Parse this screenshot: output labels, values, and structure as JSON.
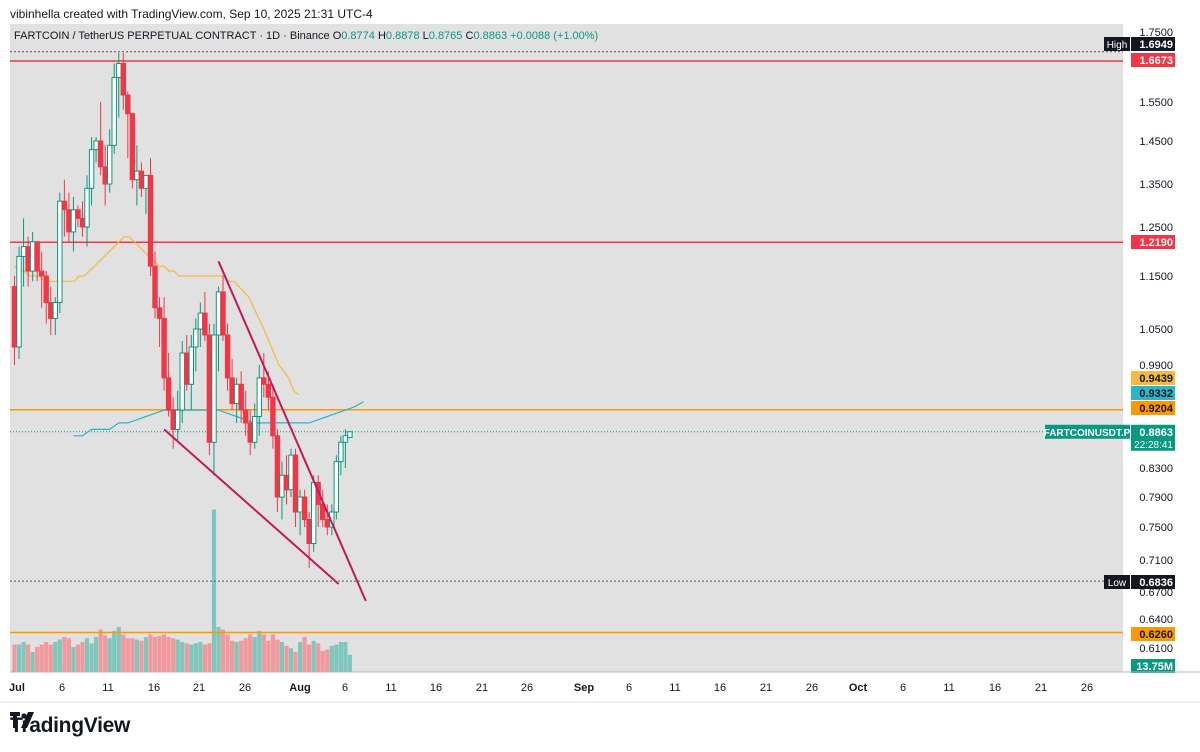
{
  "credit": "vibinhella created with TradingView.com, Sep 10, 2025 21:31 UTC-4",
  "legend": {
    "title": "FARTCOIN / TetherUS PERPETUAL CONTRACT · 1D · Binance",
    "o_label": "O",
    "o": "0.8774",
    "h_label": "H",
    "h": "0.8878",
    "l_label": "L",
    "l": "0.8765",
    "c_label": "C",
    "c": "0.8863",
    "change": "+0.0088 (+1.00%)"
  },
  "brand": "TradingView",
  "colors": {
    "up": "#089981",
    "down": "#f23645",
    "vol_up": "#7fc6bd",
    "vol_down": "#f19a9e",
    "plot_bg": "#e1e1e1",
    "resistance": "#f23645",
    "support_line": "#ff9800",
    "ma_slow": "#29b6c8",
    "ma_fast": "#f5b93b",
    "trendline": "#c2185b"
  },
  "chart_data": {
    "type": "candlestick",
    "symbol": "FARTCOIN / TetherUS PERPETUAL CONTRACT",
    "timeframe": "1D",
    "exchange": "Binance",
    "y_ticks": [
      "1.7500",
      "1.5500",
      "1.4500",
      "1.3500",
      "1.2500",
      "1.1500",
      "1.0500",
      "0.9900",
      "0.8300",
      "0.7900",
      "0.7500",
      "0.7100",
      "0.6700",
      "0.6400",
      "0.6100"
    ],
    "x_ticks": [
      "Jul",
      "6",
      "11",
      "16",
      "21",
      "26",
      "Aug",
      "6",
      "11",
      "16",
      "21",
      "26",
      "Sep",
      "6",
      "11",
      "16",
      "21",
      "26",
      "Oct",
      "6",
      "11",
      "16",
      "21",
      "26"
    ],
    "price_labels": [
      {
        "text": "1.6949",
        "kind": "high",
        "tag": "High"
      },
      {
        "text": "1.6673",
        "kind": "resistance"
      },
      {
        "text": "1.2190",
        "kind": "resistance"
      },
      {
        "text": "0.9439",
        "kind": "ma_fast"
      },
      {
        "text": "0.9332",
        "kind": "ma_slow"
      },
      {
        "text": "0.9204",
        "kind": "support"
      },
      {
        "text": "0.6836",
        "kind": "low",
        "tag": "Low"
      },
      {
        "text": "0.6260",
        "kind": "support"
      }
    ],
    "last_price": {
      "symbol": "FARTCOINUSDT.P",
      "price": "0.8863",
      "countdown": "22:28:41"
    },
    "volume_label": "13.75M",
    "horizontal_levels": [
      1.6949,
      1.6673,
      1.219,
      0.9204,
      0.6836,
      0.626
    ],
    "candles": [
      [
        1.13,
        1.15,
        0.99,
        1.02
      ],
      [
        1.02,
        1.21,
        1.0,
        1.19
      ],
      [
        1.19,
        1.27,
        1.13,
        1.21
      ],
      [
        1.21,
        1.23,
        1.13,
        1.16
      ],
      [
        1.16,
        1.24,
        1.14,
        1.22
      ],
      [
        1.22,
        1.22,
        1.14,
        1.16
      ],
      [
        1.16,
        1.2,
        1.09,
        1.15
      ],
      [
        1.15,
        1.16,
        1.06,
        1.1
      ],
      [
        1.1,
        1.13,
        1.04,
        1.07
      ],
      [
        1.07,
        1.11,
        1.04,
        1.1
      ],
      [
        1.1,
        1.33,
        1.08,
        1.31
      ],
      [
        1.31,
        1.36,
        1.23,
        1.29
      ],
      [
        1.29,
        1.33,
        1.22,
        1.24
      ],
      [
        1.24,
        1.32,
        1.2,
        1.29
      ],
      [
        1.29,
        1.3,
        1.25,
        1.27
      ],
      [
        1.27,
        1.31,
        1.23,
        1.25
      ],
      [
        1.25,
        1.37,
        1.21,
        1.34
      ],
      [
        1.34,
        1.46,
        1.3,
        1.43
      ],
      [
        1.43,
        1.46,
        1.4,
        1.45
      ],
      [
        1.45,
        1.55,
        1.37,
        1.39
      ],
      [
        1.39,
        1.44,
        1.3,
        1.35
      ],
      [
        1.35,
        1.48,
        1.33,
        1.44
      ],
      [
        1.44,
        1.66,
        1.42,
        1.62
      ],
      [
        1.62,
        1.69,
        1.51,
        1.66
      ],
      [
        1.66,
        1.69,
        1.53,
        1.57
      ],
      [
        1.57,
        1.58,
        1.41,
        1.52
      ],
      [
        1.52,
        1.52,
        1.34,
        1.36
      ],
      [
        1.36,
        1.44,
        1.3,
        1.38
      ],
      [
        1.38,
        1.4,
        1.32,
        1.34
      ],
      [
        1.34,
        1.37,
        1.28,
        1.37
      ],
      [
        1.37,
        1.41,
        1.15,
        1.17
      ],
      [
        1.17,
        1.2,
        1.07,
        1.09
      ],
      [
        1.09,
        1.11,
        1.02,
        1.07
      ],
      [
        1.07,
        1.11,
        0.95,
        0.97
      ],
      [
        0.97,
        1.01,
        0.91,
        0.92
      ],
      [
        0.92,
        0.94,
        0.86,
        0.89
      ],
      [
        0.89,
        0.95,
        0.87,
        0.92
      ],
      [
        0.92,
        1.03,
        0.9,
        1.01
      ],
      [
        1.01,
        1.04,
        0.95,
        0.96
      ],
      [
        0.96,
        1.04,
        0.92,
        1.02
      ],
      [
        1.02,
        1.07,
        0.98,
        1.05
      ],
      [
        1.05,
        1.1,
        1.02,
        1.08
      ],
      [
        1.08,
        1.12,
        1.03,
        1.04
      ],
      [
        1.04,
        1.06,
        0.85,
        0.87
      ],
      [
        0.87,
        1.06,
        0.82,
        1.04
      ],
      [
        1.04,
        1.13,
        0.98,
        1.12
      ],
      [
        1.12,
        1.15,
        1.03,
        1.04
      ],
      [
        1.04,
        1.06,
        0.95,
        0.97
      ],
      [
        0.97,
        1.0,
        0.92,
        0.93
      ],
      [
        0.93,
        0.97,
        0.9,
        0.96
      ],
      [
        0.96,
        0.98,
        0.9,
        0.92
      ],
      [
        0.92,
        0.95,
        0.88,
        0.9
      ],
      [
        0.9,
        0.92,
        0.85,
        0.87
      ],
      [
        0.87,
        0.93,
        0.86,
        0.91
      ],
      [
        0.91,
        0.99,
        0.88,
        0.97
      ],
      [
        0.97,
        1.01,
        0.94,
        0.96
      ],
      [
        0.96,
        0.98,
        0.92,
        0.94
      ],
      [
        0.94,
        0.96,
        0.86,
        0.88
      ],
      [
        0.88,
        0.89,
        0.77,
        0.79
      ],
      [
        0.79,
        0.84,
        0.76,
        0.82
      ],
      [
        0.82,
        0.85,
        0.78,
        0.8
      ],
      [
        0.8,
        0.86,
        0.79,
        0.85
      ],
      [
        0.85,
        0.86,
        0.75,
        0.77
      ],
      [
        0.77,
        0.8,
        0.74,
        0.79
      ],
      [
        0.79,
        0.8,
        0.75,
        0.76
      ],
      [
        0.76,
        0.77,
        0.7,
        0.73
      ],
      [
        0.73,
        0.82,
        0.72,
        0.81
      ],
      [
        0.81,
        0.82,
        0.75,
        0.78
      ],
      [
        0.78,
        0.8,
        0.75,
        0.76
      ],
      [
        0.76,
        0.78,
        0.74,
        0.75
      ],
      [
        0.75,
        0.78,
        0.74,
        0.77
      ],
      [
        0.77,
        0.85,
        0.76,
        0.84
      ],
      [
        0.84,
        0.88,
        0.82,
        0.87
      ],
      [
        0.87,
        0.89,
        0.83,
        0.88
      ],
      [
        0.8774,
        0.8878,
        0.8765,
        0.8863
      ]
    ],
    "volume_millions": [
      22,
      22,
      24,
      22,
      16,
      20,
      22,
      24,
      22,
      24,
      26,
      28,
      27,
      20,
      22,
      24,
      27,
      23,
      28,
      34,
      29,
      27,
      33,
      36,
      30,
      27,
      27,
      26,
      25,
      28,
      30,
      28,
      29,
      30,
      28,
      27,
      26,
      24,
      23,
      22,
      23,
      24,
      22,
      23,
      130,
      36,
      34,
      30,
      25,
      24,
      25,
      27,
      30,
      28,
      33,
      30,
      25,
      30,
      26,
      24,
      21,
      19,
      16,
      24,
      28,
      22,
      25,
      23,
      17,
      18,
      21,
      22,
      24,
      24,
      13.75
    ],
    "ma_fast_values": [
      1.17,
      1.16,
      1.16,
      1.15,
      1.15,
      1.15,
      1.14,
      1.14,
      1.14,
      1.14,
      1.14,
      1.14,
      1.14,
      1.15,
      1.15,
      1.16,
      1.17,
      1.18,
      1.19,
      1.2,
      1.21,
      1.22,
      1.23,
      1.23,
      1.22,
      1.21,
      1.2,
      1.19,
      1.18,
      1.17,
      1.17,
      1.16,
      1.16,
      1.15,
      1.15,
      1.15,
      1.15,
      1.15,
      1.15,
      1.15,
      1.15,
      1.15,
      1.15,
      1.14,
      1.14,
      1.13,
      1.12,
      1.11,
      1.09,
      1.07,
      1.05,
      1.03,
      1.01,
      0.99,
      0.98,
      0.97,
      0.95,
      0.944
    ],
    "ma_slow_values": [
      0.88,
      0.88,
      0.89,
      0.89,
      0.89,
      0.9,
      0.9,
      0.905,
      0.91,
      0.915,
      0.92,
      0.92,
      0.92,
      0.92,
      0.92,
      0.92,
      0.92,
      0.915,
      0.91,
      0.905,
      0.9,
      0.9,
      0.9,
      0.9,
      0.9,
      0.9,
      0.9,
      0.905,
      0.91,
      0.915,
      0.92,
      0.925,
      0.9332
    ],
    "wedge_upper": [
      [
        1.18,
        0.66
      ]
    ],
    "wedge_lower": [
      [
        0.89,
        0.68
      ]
    ]
  }
}
